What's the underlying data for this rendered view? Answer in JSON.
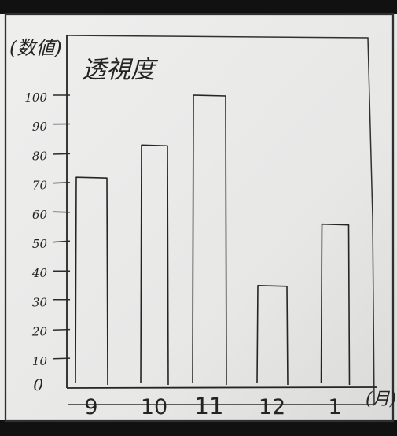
{
  "chart_data": {
    "type": "bar",
    "title": "透視度",
    "ylabel": "(数値)",
    "xlabel": "(月)",
    "categories": [
      "9",
      "10",
      "11",
      "12",
      "1"
    ],
    "values": [
      72,
      83,
      100,
      35,
      56
    ],
    "yticks": [
      0,
      10,
      20,
      30,
      40,
      50,
      60,
      70,
      80,
      90,
      100
    ],
    "ylim": [
      0,
      110
    ],
    "grid": false,
    "legend": "none",
    "colors": {
      "paper": "#e9e9e8",
      "ink": "#252525"
    }
  }
}
